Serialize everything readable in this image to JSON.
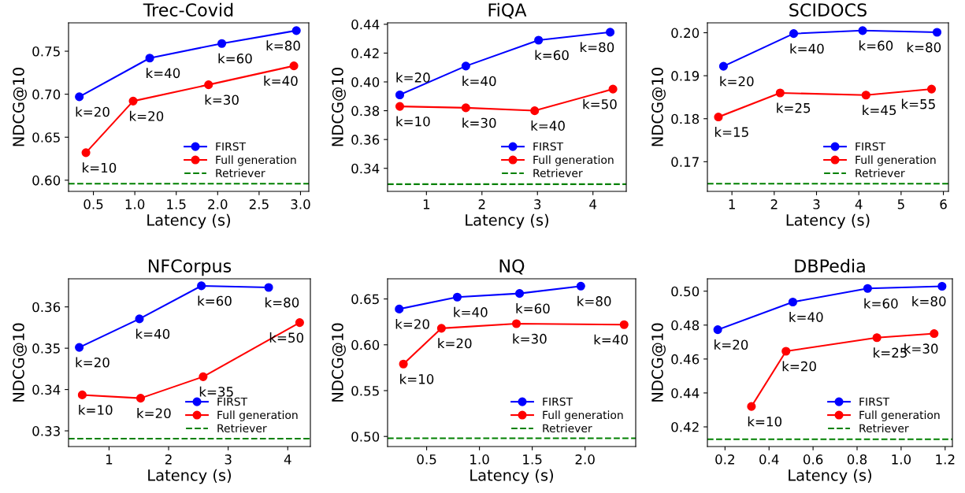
{
  "chart_data": [
    {
      "type": "line",
      "title": "Trec-Covid",
      "xlabel": "Latency (s)",
      "ylabel": "NDCG@10",
      "xlim": [
        0.2,
        3.1
      ],
      "ylim": [
        0.587,
        0.783
      ],
      "xticks": [
        {
          "value": 0.5,
          "label": "0.5"
        },
        {
          "value": 1.0,
          "label": "1.0"
        },
        {
          "value": 1.5,
          "label": "1.5"
        },
        {
          "value": 2.0,
          "label": "2.0"
        },
        {
          "value": 2.5,
          "label": "2.5"
        },
        {
          "value": 3.0,
          "label": "3.0"
        }
      ],
      "yticks": [
        {
          "value": 0.6,
          "label": "0.60"
        },
        {
          "value": 0.65,
          "label": "0.65"
        },
        {
          "value": 0.7,
          "label": "0.70"
        },
        {
          "value": 0.75,
          "label": "0.75"
        }
      ],
      "marker": "circle",
      "legend": "lower right",
      "grid": false,
      "series": [
        {
          "name": "FIRST",
          "color": "#0000ff",
          "x": [
            0.33,
            1.18,
            2.05,
            2.95
          ],
          "values": [
            0.697,
            0.742,
            0.759,
            0.774
          ]
        },
        {
          "name": "Full generation",
          "color": "#ff0000",
          "x": [
            0.41,
            0.98,
            1.89,
            2.92
          ],
          "values": [
            0.632,
            0.692,
            0.711,
            0.733
          ]
        }
      ],
      "ref_lines": [
        {
          "axis": "y",
          "value": 0.596,
          "label": "Retriever",
          "color": "#008000",
          "line_style": "dashed"
        }
      ],
      "annotations": [
        {
          "text": "k=20",
          "x": 0.33,
          "y": 0.697
        },
        {
          "text": "k=40",
          "x": 1.18,
          "y": 0.742
        },
        {
          "text": "k=60",
          "x": 2.05,
          "y": 0.759
        },
        {
          "text": "k=80",
          "x": 2.95,
          "y": 0.774
        },
        {
          "text": "k=10",
          "x": 0.41,
          "y": 0.632
        },
        {
          "text": "k=20",
          "x": 0.98,
          "y": 0.692
        },
        {
          "text": "k=30",
          "x": 1.89,
          "y": 0.711
        },
        {
          "text": "k=40",
          "x": 2.92,
          "y": 0.733
        }
      ]
    },
    {
      "type": "line",
      "title": "FiQA",
      "xlabel": "Latency (s)",
      "ylabel": "NDCG@10",
      "xlim": [
        0.3,
        4.6
      ],
      "ylim": [
        0.324,
        0.441
      ],
      "xticks": [
        1,
        2,
        3,
        4
      ],
      "yticks": [
        {
          "value": 0.34,
          "label": "0.34"
        },
        {
          "value": 0.36,
          "label": "0.36"
        },
        {
          "value": 0.38,
          "label": "0.38"
        },
        {
          "value": 0.4,
          "label": "0.40"
        },
        {
          "value": 0.42,
          "label": "0.42"
        },
        {
          "value": 0.44,
          "label": "0.44"
        }
      ],
      "marker": "circle",
      "legend": "lower right",
      "grid": false,
      "series": [
        {
          "name": "FIRST",
          "color": "#0000ff",
          "x": [
            0.52,
            1.71,
            3.02,
            4.31
          ],
          "values": [
            0.391,
            0.411,
            0.429,
            0.4345
          ]
        },
        {
          "name": "Full generation",
          "color": "#ff0000",
          "x": [
            0.52,
            1.71,
            2.95,
            4.36
          ],
          "values": [
            0.383,
            0.382,
            0.38,
            0.395
          ]
        }
      ],
      "ref_lines": [
        {
          "axis": "y",
          "value": 0.329,
          "label": "Retriever",
          "color": "#008000",
          "line_style": "dashed"
        }
      ],
      "annotations": [
        {
          "text": "k=20",
          "x": 0.52,
          "y": 0.391
        },
        {
          "text": "k=40",
          "x": 1.71,
          "y": 0.411
        },
        {
          "text": "k=60",
          "x": 3.02,
          "y": 0.429
        },
        {
          "text": "k=80",
          "x": 4.31,
          "y": 0.4345
        },
        {
          "text": "k=10",
          "x": 0.52,
          "y": 0.383
        },
        {
          "text": "k=30",
          "x": 1.71,
          "y": 0.382
        },
        {
          "text": "k=40",
          "x": 2.95,
          "y": 0.38
        },
        {
          "text": "k=50",
          "x": 4.36,
          "y": 0.395
        }
      ]
    },
    {
      "type": "line",
      "title": "SCIDOCS",
      "xlabel": "Latency (s)",
      "ylabel": "NDCG@10",
      "xlim": [
        0.42,
        6.12
      ],
      "ylim": [
        0.1631,
        0.2023
      ],
      "xticks": [
        1,
        2,
        3,
        4,
        5,
        6
      ],
      "yticks": [
        {
          "value": 0.17,
          "label": "0.17"
        },
        {
          "value": 0.18,
          "label": "0.18"
        },
        {
          "value": 0.19,
          "label": "0.19"
        },
        {
          "value": 0.2,
          "label": "0.20"
        }
      ],
      "marker": "circle",
      "legend": "lower right",
      "grid": false,
      "series": [
        {
          "name": "FIRST",
          "color": "#0000ff",
          "x": [
            0.8,
            2.46,
            4.09,
            5.85
          ],
          "values": [
            0.1922,
            0.1998,
            0.2005,
            0.2001
          ]
        },
        {
          "name": "Full generation",
          "color": "#ff0000",
          "x": [
            0.68,
            2.14,
            4.17,
            5.72
          ],
          "values": [
            0.1804,
            0.186,
            0.1855,
            0.1869
          ]
        }
      ],
      "ref_lines": [
        {
          "axis": "y",
          "value": 0.1649,
          "label": "Retriever",
          "color": "#008000",
          "line_style": "dashed"
        }
      ],
      "annotations": [
        {
          "text": "k=20",
          "x": 0.8,
          "y": 0.1922
        },
        {
          "text": "k=40",
          "x": 2.46,
          "y": 0.1998
        },
        {
          "text": "k=60",
          "x": 4.09,
          "y": 0.2005
        },
        {
          "text": "k=80",
          "x": 5.85,
          "y": 0.2001
        },
        {
          "text": "k=15",
          "x": 0.68,
          "y": 0.1804
        },
        {
          "text": "k=25",
          "x": 2.14,
          "y": 0.186
        },
        {
          "text": "k=45",
          "x": 4.17,
          "y": 0.1855
        },
        {
          "text": "k=55",
          "x": 5.72,
          "y": 0.1869
        }
      ]
    },
    {
      "type": "line",
      "title": "NFCorpus",
      "xlabel": "Latency (s)",
      "ylabel": "NDCG@10",
      "xlim": [
        0.32,
        4.38
      ],
      "ylim": [
        0.3262,
        0.3668
      ],
      "xticks": [
        1,
        2,
        3,
        4
      ],
      "yticks": [
        {
          "value": 0.33,
          "label": "0.33"
        },
        {
          "value": 0.34,
          "label": "0.34"
        },
        {
          "value": 0.35,
          "label": "0.35"
        },
        {
          "value": 0.36,
          "label": "0.36"
        }
      ],
      "marker": "circle",
      "legend": "lower right",
      "grid": false,
      "series": [
        {
          "name": "FIRST",
          "color": "#0000ff",
          "x": [
            0.5,
            1.51,
            2.55,
            3.68
          ],
          "values": [
            0.3502,
            0.3571,
            0.3651,
            0.3647
          ]
        },
        {
          "name": "Full generation",
          "color": "#ff0000",
          "x": [
            0.55,
            1.53,
            2.58,
            4.2
          ],
          "values": [
            0.3387,
            0.3379,
            0.3431,
            0.3562
          ]
        }
      ],
      "ref_lines": [
        {
          "axis": "y",
          "value": 0.3281,
          "label": "Retriever",
          "color": "#008000",
          "line_style": "dashed"
        }
      ],
      "annotations": [
        {
          "text": "k=20",
          "x": 0.5,
          "y": 0.3502
        },
        {
          "text": "k=40",
          "x": 1.51,
          "y": 0.3571
        },
        {
          "text": "k=60",
          "x": 2.55,
          "y": 0.3651
        },
        {
          "text": "k=80",
          "x": 3.68,
          "y": 0.3647
        },
        {
          "text": "k=10",
          "x": 0.55,
          "y": 0.3387
        },
        {
          "text": "k=20",
          "x": 1.53,
          "y": 0.3379
        },
        {
          "text": "k=35",
          "x": 2.58,
          "y": 0.3431
        },
        {
          "text": "k=50",
          "x": 4.2,
          "y": 0.3562
        }
      ]
    },
    {
      "type": "line",
      "title": "NQ",
      "xlabel": "Latency (s)",
      "ylabel": "NDCG@10",
      "xlim": [
        0.13,
        2.48
      ],
      "ylim": [
        0.489,
        0.672
      ],
      "xticks": [
        {
          "value": 0.5,
          "label": "0.5"
        },
        {
          "value": 1.0,
          "label": "1.0"
        },
        {
          "value": 1.5,
          "label": "1.5"
        },
        {
          "value": 2.0,
          "label": "2.0"
        }
      ],
      "yticks": [
        {
          "value": 0.5,
          "label": "0.50"
        },
        {
          "value": 0.55,
          "label": "0.55"
        },
        {
          "value": 0.6,
          "label": "0.60"
        },
        {
          "value": 0.65,
          "label": "0.65"
        }
      ],
      "marker": "circle",
      "legend": "lower right",
      "grid": false,
      "series": [
        {
          "name": "FIRST",
          "color": "#0000ff",
          "x": [
            0.24,
            0.79,
            1.38,
            1.96
          ],
          "values": [
            0.639,
            0.652,
            0.656,
            0.664
          ]
        },
        {
          "name": "Full generation",
          "color": "#ff0000",
          "x": [
            0.28,
            0.64,
            1.35,
            2.37
          ],
          "values": [
            0.579,
            0.618,
            0.623,
            0.622
          ]
        }
      ],
      "ref_lines": [
        {
          "axis": "y",
          "value": 0.498,
          "label": "Retriever",
          "color": "#008000",
          "line_style": "dashed"
        }
      ],
      "annotations": [
        {
          "text": "k=20",
          "x": 0.24,
          "y": 0.639
        },
        {
          "text": "k=40",
          "x": 0.79,
          "y": 0.652
        },
        {
          "text": "k=60",
          "x": 1.38,
          "y": 0.656
        },
        {
          "text": "k=80",
          "x": 1.96,
          "y": 0.664
        },
        {
          "text": "k=10",
          "x": 0.28,
          "y": 0.579
        },
        {
          "text": "k=20",
          "x": 0.64,
          "y": 0.618
        },
        {
          "text": "k=30",
          "x": 1.35,
          "y": 0.623
        },
        {
          "text": "k=40",
          "x": 2.37,
          "y": 0.622
        }
      ]
    },
    {
      "type": "line",
      "title": "DBPedia",
      "xlabel": "Latency (s)",
      "ylabel": "NDCG@10",
      "xlim": [
        0.12,
        1.233
      ],
      "ylim": [
        0.4084,
        0.5073
      ],
      "xticks": [
        {
          "value": 0.2,
          "label": "0.2"
        },
        {
          "value": 0.4,
          "label": "0.4"
        },
        {
          "value": 0.6,
          "label": "0.6"
        },
        {
          "value": 0.8,
          "label": "0.8"
        },
        {
          "value": 1.0,
          "label": "1.0"
        },
        {
          "value": 1.2,
          "label": "1.2"
        }
      ],
      "yticks": [
        {
          "value": 0.42,
          "label": "0.42"
        },
        {
          "value": 0.44,
          "label": "0.44"
        },
        {
          "value": 0.46,
          "label": "0.46"
        },
        {
          "value": 0.48,
          "label": "0.48"
        },
        {
          "value": 0.5,
          "label": "0.50"
        }
      ],
      "marker": "circle",
      "legend": "lower right",
      "grid": false,
      "series": [
        {
          "name": "FIRST",
          "color": "#0000ff",
          "x": [
            0.167,
            0.508,
            0.848,
            1.186
          ],
          "values": [
            0.4773,
            0.4936,
            0.5016,
            0.5029
          ]
        },
        {
          "name": "Full generation",
          "color": "#ff0000",
          "x": [
            0.32,
            0.477,
            0.89,
            1.15
          ],
          "values": [
            0.432,
            0.4646,
            0.4726,
            0.475
          ]
        }
      ],
      "ref_lines": [
        {
          "axis": "y",
          "value": 0.4127,
          "label": "Retriever",
          "color": "#008000",
          "line_style": "dashed"
        }
      ],
      "annotations": [
        {
          "text": "k=20",
          "x": 0.167,
          "y": 0.4773
        },
        {
          "text": "k=40",
          "x": 0.508,
          "y": 0.4936
        },
        {
          "text": "k=60",
          "x": 0.848,
          "y": 0.5016
        },
        {
          "text": "k=80",
          "x": 1.186,
          "y": 0.5029
        },
        {
          "text": "k=10",
          "x": 0.32,
          "y": 0.432
        },
        {
          "text": "k=20",
          "x": 0.477,
          "y": 0.4646
        },
        {
          "text": "k=25",
          "x": 0.89,
          "y": 0.4726
        },
        {
          "text": "k=30",
          "x": 1.15,
          "y": 0.475
        }
      ]
    }
  ]
}
